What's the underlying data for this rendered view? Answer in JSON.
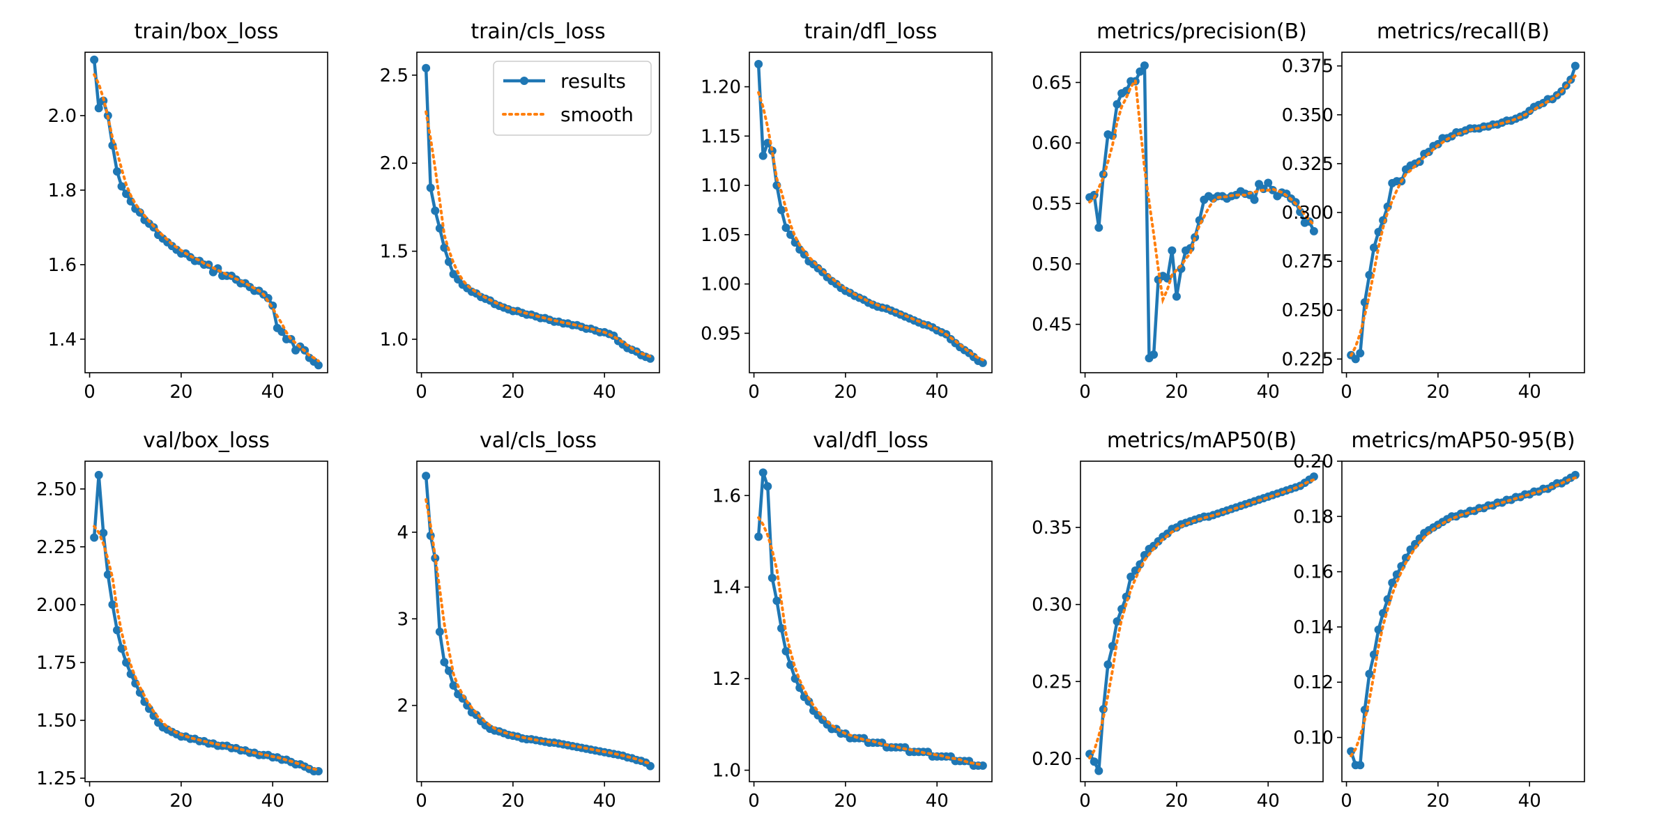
{
  "colors": {
    "results": "#1f77b4",
    "smooth": "#ff7f0e",
    "axes": "#000000"
  },
  "legend": {
    "results": "results",
    "smooth": "smooth",
    "placement": "top-right",
    "panel": 1
  },
  "chart_data": [
    {
      "type": "line",
      "title": "train/box_loss",
      "x_ticks": [
        0,
        20,
        40
      ],
      "y_ticks": [
        1.4,
        1.6,
        1.8,
        2.0
      ],
      "y_tick_labels": [
        "1.4",
        "1.6",
        "1.8",
        "2.0"
      ],
      "xlim": [
        -1,
        52
      ],
      "ylim": [
        1.31,
        2.17
      ],
      "series": [
        {
          "name": "results",
          "values": [
            2.15,
            2.02,
            2.04,
            2.0,
            1.92,
            1.85,
            1.81,
            1.79,
            1.77,
            1.75,
            1.74,
            1.72,
            1.71,
            1.7,
            1.68,
            1.67,
            1.66,
            1.65,
            1.64,
            1.63,
            1.63,
            1.62,
            1.61,
            1.61,
            1.6,
            1.6,
            1.58,
            1.59,
            1.57,
            1.57,
            1.57,
            1.56,
            1.55,
            1.55,
            1.54,
            1.53,
            1.53,
            1.52,
            1.51,
            1.49,
            1.43,
            1.42,
            1.4,
            1.4,
            1.37,
            1.38,
            1.37,
            1.35,
            1.34,
            1.33
          ]
        }
      ]
    },
    {
      "type": "line",
      "title": "train/cls_loss",
      "x_ticks": [
        0,
        20,
        40
      ],
      "y_ticks": [
        1.0,
        1.5,
        2.0,
        2.5
      ],
      "y_tick_labels": [
        "1.0",
        "1.5",
        "2.0",
        "2.5"
      ],
      "xlim": [
        -1,
        52
      ],
      "ylim": [
        0.81,
        2.63
      ],
      "series": [
        {
          "name": "results",
          "values": [
            2.54,
            1.86,
            1.73,
            1.63,
            1.52,
            1.44,
            1.37,
            1.34,
            1.31,
            1.29,
            1.27,
            1.26,
            1.24,
            1.23,
            1.22,
            1.2,
            1.19,
            1.18,
            1.17,
            1.16,
            1.16,
            1.15,
            1.14,
            1.14,
            1.13,
            1.12,
            1.12,
            1.11,
            1.1,
            1.1,
            1.09,
            1.09,
            1.08,
            1.08,
            1.07,
            1.06,
            1.06,
            1.05,
            1.04,
            1.04,
            1.03,
            1.02,
            0.99,
            0.97,
            0.95,
            0.94,
            0.93,
            0.91,
            0.9,
            0.89
          ]
        }
      ]
    },
    {
      "type": "line",
      "title": "train/dfl_loss",
      "x_ticks": [
        0,
        20,
        40
      ],
      "y_ticks": [
        0.95,
        1.0,
        1.05,
        1.1,
        1.15,
        1.2
      ],
      "y_tick_labels": [
        "0.95",
        "1.00",
        "1.05",
        "1.10",
        "1.15",
        "1.20"
      ],
      "xlim": [
        -1,
        52
      ],
      "ylim": [
        0.91,
        1.235
      ],
      "series": [
        {
          "name": "results",
          "values": [
            1.223,
            1.13,
            1.143,
            1.135,
            1.1,
            1.075,
            1.057,
            1.05,
            1.042,
            1.035,
            1.03,
            1.023,
            1.02,
            1.016,
            1.012,
            1.007,
            1.003,
            1.0,
            0.996,
            0.993,
            0.991,
            0.988,
            0.986,
            0.984,
            0.981,
            0.979,
            0.977,
            0.976,
            0.975,
            0.973,
            0.971,
            0.969,
            0.967,
            0.965,
            0.963,
            0.961,
            0.959,
            0.958,
            0.956,
            0.953,
            0.951,
            0.949,
            0.944,
            0.94,
            0.936,
            0.933,
            0.93,
            0.926,
            0.922,
            0.92
          ]
        }
      ]
    },
    {
      "type": "line",
      "title": "metrics/precision(B)",
      "x_ticks": [
        0,
        20,
        40
      ],
      "y_ticks": [
        0.45,
        0.5,
        0.55,
        0.6,
        0.65
      ],
      "y_tick_labels": [
        "0.45",
        "0.50",
        "0.55",
        "0.60",
        "0.65"
      ],
      "xlim": [
        -1,
        52
      ],
      "ylim": [
        0.41,
        0.675
      ],
      "series": [
        {
          "name": "results",
          "values": [
            0.555,
            0.557,
            0.53,
            0.574,
            0.607,
            0.606,
            0.632,
            0.641,
            0.643,
            0.651,
            0.651,
            0.659,
            0.664,
            0.422,
            0.425,
            0.487,
            0.49,
            0.488,
            0.511,
            0.473,
            0.496,
            0.511,
            0.513,
            0.522,
            0.536,
            0.553,
            0.556,
            0.554,
            0.556,
            0.556,
            0.554,
            0.556,
            0.557,
            0.56,
            0.558,
            0.557,
            0.553,
            0.566,
            0.562,
            0.567,
            0.561,
            0.556,
            0.559,
            0.558,
            0.554,
            0.551,
            0.543,
            0.534,
            0.535,
            0.527
          ]
        }
      ]
    },
    {
      "type": "line",
      "title": "metrics/recall(B)",
      "x_ticks": [
        0,
        20,
        40
      ],
      "y_ticks": [
        0.225,
        0.25,
        0.275,
        0.3,
        0.325,
        0.35,
        0.375
      ],
      "y_tick_labels": [
        "0.225",
        "0.250",
        "0.275",
        "0.300",
        "0.325",
        "0.350",
        "0.375"
      ],
      "xlim": [
        -1,
        52
      ],
      "ylim": [
        0.218,
        0.382
      ],
      "series": [
        {
          "name": "results",
          "values": [
            0.227,
            0.225,
            0.228,
            0.254,
            0.268,
            0.282,
            0.29,
            0.296,
            0.303,
            0.315,
            0.316,
            0.316,
            0.322,
            0.324,
            0.325,
            0.326,
            0.33,
            0.331,
            0.334,
            0.335,
            0.338,
            0.338,
            0.339,
            0.341,
            0.341,
            0.342,
            0.343,
            0.343,
            0.343,
            0.344,
            0.344,
            0.345,
            0.345,
            0.346,
            0.347,
            0.347,
            0.348,
            0.349,
            0.35,
            0.352,
            0.354,
            0.355,
            0.356,
            0.358,
            0.358,
            0.36,
            0.362,
            0.365,
            0.368,
            0.375
          ]
        }
      ]
    },
    {
      "type": "line",
      "title": "val/box_loss",
      "x_ticks": [
        0,
        20,
        40
      ],
      "y_ticks": [
        1.25,
        1.5,
        1.75,
        2.0,
        2.25,
        2.5
      ],
      "y_tick_labels": [
        "1.25",
        "1.50",
        "1.75",
        "2.00",
        "2.25",
        "2.50"
      ],
      "xlim": [
        -1,
        52
      ],
      "ylim": [
        1.235,
        2.62
      ],
      "series": [
        {
          "name": "results",
          "values": [
            2.29,
            2.56,
            2.31,
            2.13,
            2.0,
            1.89,
            1.81,
            1.75,
            1.7,
            1.66,
            1.62,
            1.58,
            1.55,
            1.52,
            1.49,
            1.47,
            1.46,
            1.45,
            1.44,
            1.43,
            1.43,
            1.42,
            1.42,
            1.41,
            1.41,
            1.4,
            1.4,
            1.39,
            1.39,
            1.39,
            1.38,
            1.38,
            1.37,
            1.37,
            1.36,
            1.36,
            1.35,
            1.35,
            1.35,
            1.34,
            1.34,
            1.33,
            1.33,
            1.32,
            1.31,
            1.31,
            1.3,
            1.29,
            1.28,
            1.28
          ]
        }
      ]
    },
    {
      "type": "line",
      "title": "val/cls_loss",
      "x_ticks": [
        0,
        20,
        40
      ],
      "y_ticks": [
        2,
        3,
        4
      ],
      "y_tick_labels": [
        "2",
        "3",
        "4"
      ],
      "xlim": [
        -1,
        52
      ],
      "ylim": [
        1.12,
        4.82
      ],
      "series": [
        {
          "name": "results",
          "values": [
            4.65,
            3.96,
            3.7,
            2.85,
            2.5,
            2.4,
            2.23,
            2.13,
            2.08,
            2.0,
            1.92,
            1.89,
            1.82,
            1.77,
            1.73,
            1.71,
            1.7,
            1.68,
            1.66,
            1.65,
            1.64,
            1.62,
            1.61,
            1.61,
            1.6,
            1.59,
            1.58,
            1.57,
            1.57,
            1.56,
            1.55,
            1.54,
            1.53,
            1.52,
            1.51,
            1.5,
            1.49,
            1.48,
            1.47,
            1.46,
            1.45,
            1.44,
            1.43,
            1.42,
            1.4,
            1.39,
            1.37,
            1.36,
            1.34,
            1.3
          ]
        }
      ]
    },
    {
      "type": "line",
      "title": "val/dfl_loss",
      "x_ticks": [
        0,
        20,
        40
      ],
      "y_ticks": [
        1.0,
        1.2,
        1.4,
        1.6
      ],
      "y_tick_labels": [
        "1.0",
        "1.2",
        "1.4",
        "1.6"
      ],
      "xlim": [
        -1,
        52
      ],
      "ylim": [
        0.975,
        1.675
      ],
      "series": [
        {
          "name": "results",
          "values": [
            1.51,
            1.65,
            1.62,
            1.42,
            1.37,
            1.31,
            1.26,
            1.23,
            1.2,
            1.18,
            1.16,
            1.15,
            1.13,
            1.12,
            1.11,
            1.1,
            1.09,
            1.09,
            1.08,
            1.08,
            1.07,
            1.07,
            1.07,
            1.07,
            1.06,
            1.06,
            1.06,
            1.06,
            1.05,
            1.05,
            1.05,
            1.05,
            1.05,
            1.04,
            1.04,
            1.04,
            1.04,
            1.04,
            1.03,
            1.03,
            1.03,
            1.03,
            1.03,
            1.02,
            1.02,
            1.02,
            1.02,
            1.01,
            1.01,
            1.01
          ]
        }
      ]
    },
    {
      "type": "line",
      "title": "metrics/mAP50(B)",
      "x_ticks": [
        0,
        20,
        40
      ],
      "y_ticks": [
        0.2,
        0.25,
        0.3,
        0.35
      ],
      "y_tick_labels": [
        "0.20",
        "0.25",
        "0.30",
        "0.35"
      ],
      "xlim": [
        -1,
        52
      ],
      "ylim": [
        0.185,
        0.393
      ],
      "series": [
        {
          "name": "results",
          "values": [
            0.203,
            0.198,
            0.192,
            0.232,
            0.261,
            0.273,
            0.289,
            0.297,
            0.305,
            0.318,
            0.322,
            0.326,
            0.332,
            0.336,
            0.338,
            0.341,
            0.344,
            0.346,
            0.349,
            0.35,
            0.352,
            0.353,
            0.354,
            0.355,
            0.356,
            0.357,
            0.357,
            0.358,
            0.359,
            0.36,
            0.361,
            0.362,
            0.363,
            0.364,
            0.365,
            0.366,
            0.367,
            0.368,
            0.369,
            0.37,
            0.371,
            0.372,
            0.373,
            0.374,
            0.375,
            0.376,
            0.377,
            0.379,
            0.381,
            0.383
          ]
        }
      ]
    },
    {
      "type": "line",
      "title": "metrics/mAP50-95(B)",
      "x_ticks": [
        0,
        20,
        40
      ],
      "y_ticks": [
        0.1,
        0.12,
        0.14,
        0.16,
        0.18,
        0.2
      ],
      "y_tick_labels": [
        "0.10",
        "0.12",
        "0.14",
        "0.16",
        "0.18",
        "0.20"
      ],
      "xlim": [
        -1,
        52
      ],
      "ylim": [
        0.084,
        0.2
      ],
      "series": [
        {
          "name": "results",
          "values": [
            0.095,
            0.09,
            0.09,
            0.11,
            0.123,
            0.13,
            0.139,
            0.145,
            0.15,
            0.156,
            0.159,
            0.162,
            0.165,
            0.168,
            0.17,
            0.172,
            0.174,
            0.175,
            0.176,
            0.177,
            0.178,
            0.179,
            0.18,
            0.18,
            0.181,
            0.181,
            0.182,
            0.182,
            0.183,
            0.183,
            0.184,
            0.184,
            0.185,
            0.185,
            0.186,
            0.186,
            0.187,
            0.187,
            0.188,
            0.188,
            0.189,
            0.189,
            0.19,
            0.19,
            0.191,
            0.192,
            0.192,
            0.193,
            0.194,
            0.195
          ]
        }
      ]
    }
  ]
}
